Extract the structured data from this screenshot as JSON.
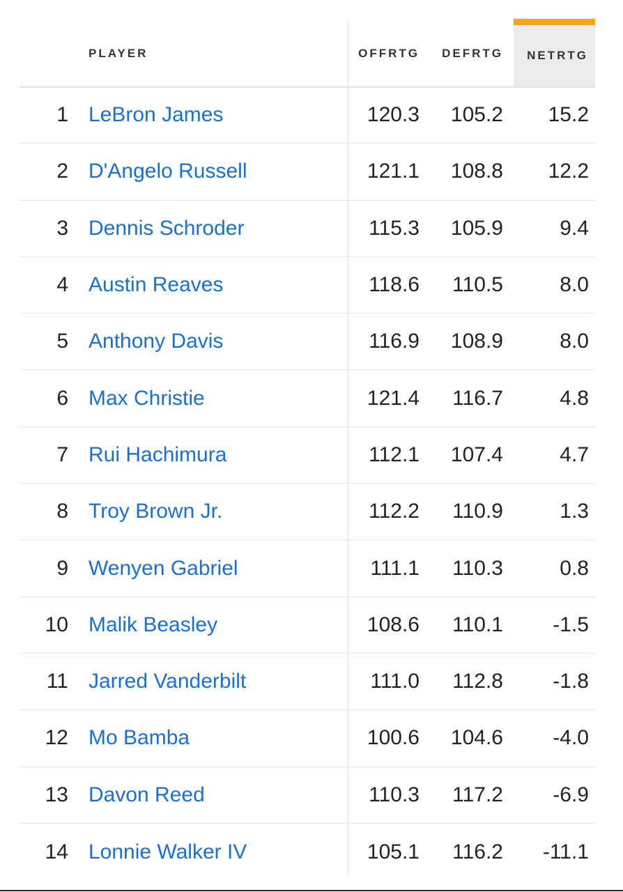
{
  "table": {
    "headers": {
      "player": "PLAYER",
      "offrtg": "OFFRTG",
      "defrtg": "DEFRTG",
      "netrtg": "NETRTG"
    },
    "sorted_column": "netrtg",
    "accent_color": "#f5a800",
    "link_color": "#1a6fd1",
    "rows": [
      {
        "rank": "1",
        "player": "LeBron James",
        "offrtg": "120.3",
        "defrtg": "105.2",
        "netrtg": "15.2"
      },
      {
        "rank": "2",
        "player": "D'Angelo Russell",
        "offrtg": "121.1",
        "defrtg": "108.8",
        "netrtg": "12.2"
      },
      {
        "rank": "3",
        "player": "Dennis Schroder",
        "offrtg": "115.3",
        "defrtg": "105.9",
        "netrtg": "9.4"
      },
      {
        "rank": "4",
        "player": "Austin Reaves",
        "offrtg": "118.6",
        "defrtg": "110.5",
        "netrtg": "8.0"
      },
      {
        "rank": "5",
        "player": "Anthony Davis",
        "offrtg": "116.9",
        "defrtg": "108.9",
        "netrtg": "8.0"
      },
      {
        "rank": "6",
        "player": "Max Christie",
        "offrtg": "121.4",
        "defrtg": "116.7",
        "netrtg": "4.8"
      },
      {
        "rank": "7",
        "player": "Rui Hachimura",
        "offrtg": "112.1",
        "defrtg": "107.4",
        "netrtg": "4.7"
      },
      {
        "rank": "8",
        "player": "Troy Brown Jr.",
        "offrtg": "112.2",
        "defrtg": "110.9",
        "netrtg": "1.3"
      },
      {
        "rank": "9",
        "player": "Wenyen Gabriel",
        "offrtg": "111.1",
        "defrtg": "110.3",
        "netrtg": "0.8"
      },
      {
        "rank": "10",
        "player": "Malik Beasley",
        "offrtg": "108.6",
        "defrtg": "110.1",
        "netrtg": "-1.5"
      },
      {
        "rank": "11",
        "player": "Jarred Vanderbilt",
        "offrtg": "111.0",
        "defrtg": "112.8",
        "netrtg": "-1.8"
      },
      {
        "rank": "12",
        "player": "Mo Bamba",
        "offrtg": "100.6",
        "defrtg": "104.6",
        "netrtg": "-4.0"
      },
      {
        "rank": "13",
        "player": "Davon Reed",
        "offrtg": "110.3",
        "defrtg": "117.2",
        "netrtg": "-6.9"
      },
      {
        "rank": "14",
        "player": "Lonnie Walker IV",
        "offrtg": "105.1",
        "defrtg": "116.2",
        "netrtg": "-11.1"
      }
    ]
  }
}
